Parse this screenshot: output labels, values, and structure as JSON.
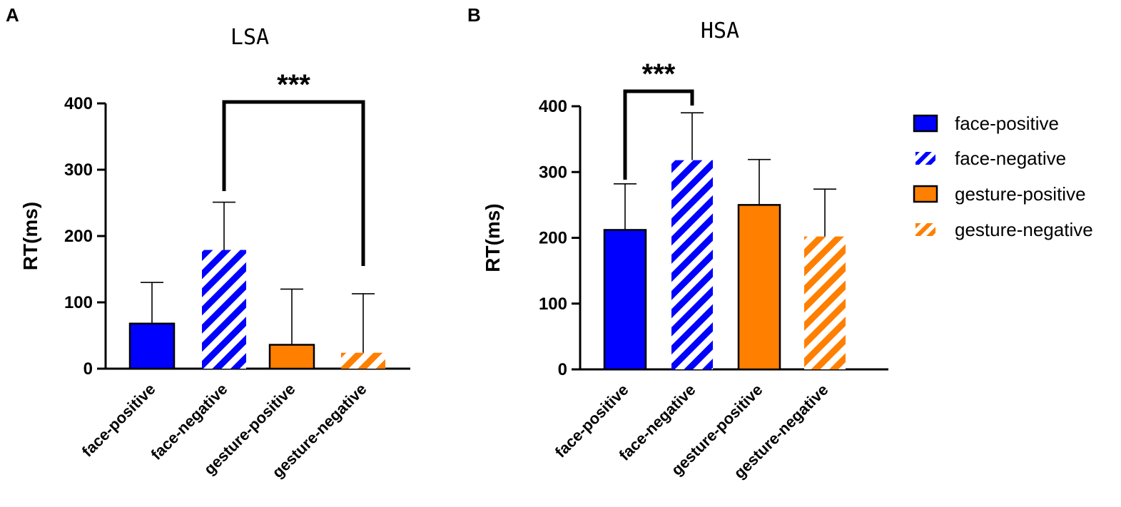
{
  "panels": {
    "a": {
      "letter": "A"
    },
    "b": {
      "letter": "B"
    }
  },
  "legend": {
    "items": [
      {
        "label": "face-positive",
        "color": "#0000ff",
        "pattern": "solid"
      },
      {
        "label": "face-negative",
        "color": "#0000ff",
        "pattern": "hatched"
      },
      {
        "label": "gesture-positive",
        "color": "#ff7f00",
        "pattern": "solid"
      },
      {
        "label": "gesture-negative",
        "color": "#ff7f00",
        "pattern": "hatched"
      }
    ]
  },
  "chart_data": [
    {
      "type": "bar",
      "panel": "A",
      "title": "LSA",
      "xlabel": "",
      "ylabel": "RT(ms)",
      "ylim": [
        0,
        400
      ],
      "yticks": [
        "0",
        "100",
        "200",
        "300",
        "400"
      ],
      "categories": [
        "face-positive",
        "face-negative",
        "gesture-positive",
        "gesture-negative"
      ],
      "values": [
        68,
        179,
        36,
        24
      ],
      "errors": [
        62,
        72,
        84,
        89
      ],
      "colors": [
        "#0000ff",
        "#0000ff",
        "#ff7f00",
        "#ff7f00"
      ],
      "patterns": [
        "solid",
        "hatched",
        "solid",
        "hatched"
      ],
      "significance": {
        "from": 1,
        "to": 3,
        "label": "***"
      },
      "grid": false
    },
    {
      "type": "bar",
      "panel": "B",
      "title": "HSA",
      "xlabel": "",
      "ylabel": "RT(ms)",
      "ylim": [
        0,
        400
      ],
      "yticks": [
        "0",
        "100",
        "200",
        "300",
        "400"
      ],
      "categories": [
        "face-positive",
        "face-negative",
        "gesture-positive",
        "gesture-negative"
      ],
      "values": [
        212,
        318,
        250,
        202
      ],
      "errors": [
        70,
        72,
        69,
        72
      ],
      "colors": [
        "#0000ff",
        "#0000ff",
        "#ff7f00",
        "#ff7f00"
      ],
      "patterns": [
        "solid",
        "hatched",
        "solid",
        "hatched"
      ],
      "significance": {
        "from": 0,
        "to": 1,
        "label": "***"
      },
      "grid": false
    }
  ]
}
